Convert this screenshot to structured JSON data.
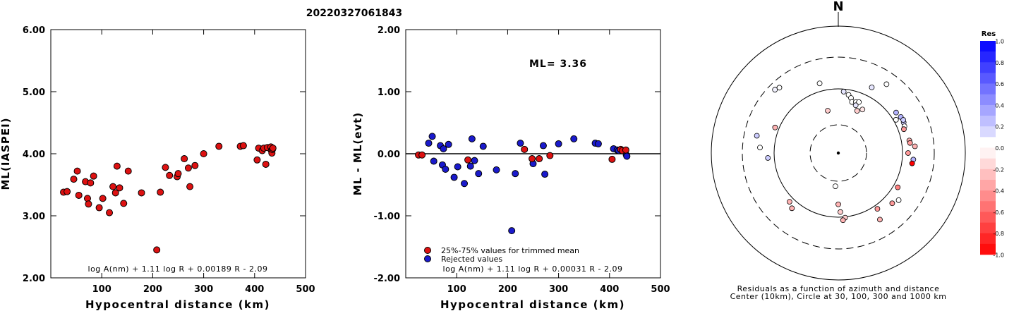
{
  "figure_title": "20220327061843",
  "chart_data": [
    {
      "type": "scatter",
      "id": "ml-vs-distance",
      "title": "",
      "xlabel": "Hypocentral distance (km)",
      "ylabel": "ML(IASPEI)",
      "xlim": [
        0,
        500
      ],
      "ylim": [
        2.0,
        6.0
      ],
      "xticks": [
        "100",
        "200",
        "300",
        "400",
        "500"
      ],
      "xtick_values": [
        100,
        200,
        300,
        400,
        500
      ],
      "yticks": [
        "2.00",
        "3.00",
        "4.00",
        "5.00",
        "6.00"
      ],
      "ytick_values": [
        2,
        3,
        4,
        5,
        6
      ],
      "formula": "log A(nm) + 1.11 log R + 0.00189 R - 2.09",
      "point_color": "#dd1111",
      "points": [
        [
          25,
          3.38
        ],
        [
          32,
          3.39
        ],
        [
          45,
          3.59
        ],
        [
          52,
          3.72
        ],
        [
          55,
          3.33
        ],
        [
          68,
          3.55
        ],
        [
          72,
          3.28
        ],
        [
          74,
          3.19
        ],
        [
          78,
          3.53
        ],
        [
          84,
          3.64
        ],
        [
          95,
          3.13
        ],
        [
          102,
          3.28
        ],
        [
          115,
          3.05
        ],
        [
          122,
          3.47
        ],
        [
          127,
          3.37
        ],
        [
          130,
          3.8
        ],
        [
          135,
          3.45
        ],
        [
          143,
          3.2
        ],
        [
          152,
          3.72
        ],
        [
          178,
          3.37
        ],
        [
          208,
          2.45
        ],
        [
          215,
          3.38
        ],
        [
          225,
          3.78
        ],
        [
          233,
          3.65
        ],
        [
          248,
          3.63
        ],
        [
          250,
          3.68
        ],
        [
          262,
          3.92
        ],
        [
          270,
          3.77
        ],
        [
          273,
          3.47
        ],
        [
          283,
          3.81
        ],
        [
          300,
          4.0
        ],
        [
          330,
          4.12
        ],
        [
          372,
          4.12
        ],
        [
          378,
          4.13
        ],
        [
          405,
          3.9
        ],
        [
          408,
          4.09
        ],
        [
          415,
          4.05
        ],
        [
          418,
          4.09
        ],
        [
          422,
          3.83
        ],
        [
          425,
          4.1
        ],
        [
          432,
          4.11
        ],
        [
          433,
          4.05
        ],
        [
          434,
          4.01
        ],
        [
          435,
          4.07
        ],
        [
          436,
          4.09
        ]
      ]
    },
    {
      "type": "scatter",
      "id": "ml-residual-vs-distance",
      "title": "",
      "xlabel": "Hypocentral distance (km)",
      "ylabel": "ML - ML(evt)",
      "xlim": [
        0,
        500
      ],
      "ylim": [
        -2.0,
        2.0
      ],
      "xticks": [
        "100",
        "200",
        "300",
        "400",
        "500"
      ],
      "xtick_values": [
        100,
        200,
        300,
        400,
        500
      ],
      "yticks": [
        "-2.00",
        "-1.00",
        "0.00",
        "1.00",
        "2.00"
      ],
      "ytick_values": [
        -2,
        -1,
        0,
        1,
        2
      ],
      "ml_text": "ML= 3.36",
      "formula": "log A(nm) + 1.11 log R + 0.00031 R - 2.09",
      "legend": [
        {
          "label": "25%-75% values for trimmed mean",
          "color": "#dd1111"
        },
        {
          "label": "Rejected values",
          "color": "#1a1acc"
        }
      ],
      "series": [
        {
          "name": "25%-75% values for trimmed mean",
          "color": "#dd1111",
          "points": [
            [
              25,
              -0.02
            ],
            [
              32,
              -0.02
            ],
            [
              122,
              -0.1
            ],
            [
              233,
              0.07
            ],
            [
              248,
              -0.08
            ],
            [
              262,
              -0.08
            ],
            [
              283,
              -0.03
            ],
            [
              405,
              -0.09
            ],
            [
              422,
              0.07
            ],
            [
              425,
              0.05
            ],
            [
              432,
              0.06
            ]
          ]
        },
        {
          "name": "Rejected values",
          "color": "#1a1acc",
          "points": [
            [
              45,
              0.17
            ],
            [
              52,
              0.28
            ],
            [
              55,
              -0.12
            ],
            [
              68,
              0.13
            ],
            [
              72,
              -0.18
            ],
            [
              74,
              0.08
            ],
            [
              78,
              -0.25
            ],
            [
              84,
              0.15
            ],
            [
              95,
              -0.38
            ],
            [
              102,
              -0.21
            ],
            [
              115,
              -0.48
            ],
            [
              127,
              -0.2
            ],
            [
              130,
              0.24
            ],
            [
              135,
              -0.11
            ],
            [
              143,
              -0.32
            ],
            [
              152,
              0.12
            ],
            [
              178,
              -0.26
            ],
            [
              208,
              -1.24
            ],
            [
              215,
              -0.32
            ],
            [
              225,
              0.17
            ],
            [
              250,
              -0.16
            ],
            [
              270,
              0.13
            ],
            [
              273,
              -0.33
            ],
            [
              300,
              0.16
            ],
            [
              330,
              0.24
            ],
            [
              372,
              0.17
            ],
            [
              378,
              0.16
            ],
            [
              408,
              0.08
            ],
            [
              415,
              0.06
            ],
            [
              418,
              0.05
            ],
            [
              433,
              -0.02
            ],
            [
              434,
              -0.04
            ]
          ]
        }
      ]
    },
    {
      "type": "scatter",
      "id": "residual-azimuth-plot",
      "title": "N",
      "caption_line1": "Residuals as a function of azimuth and distance",
      "caption_line2": "Center (10km), Circle at 30, 100, 300 and 1000 km",
      "ring_distances_km": [
        30,
        100,
        300,
        1000
      ],
      "center_km": 10,
      "note": "points as [azimuth_deg, distance_km, residual]",
      "points": [
        [
          315,
          260,
          0.05
        ],
        [
          318,
          250,
          0.0
        ],
        [
          35,
          225,
          0.0
        ],
        [
          27,
          160,
          0.1
        ],
        [
          345,
          150,
          0.0
        ],
        [
          5,
          95,
          0.1
        ],
        [
          10,
          90,
          0.0
        ],
        [
          13,
          85,
          0.0
        ],
        [
          15,
          78,
          0.0
        ],
        [
          19,
          80,
          0.0
        ],
        [
          22,
          82,
          0.0
        ],
        [
          20,
          74,
          0.1
        ],
        [
          24,
          65,
          -0.2
        ],
        [
          29,
          72,
          -0.1
        ],
        [
          346,
          60,
          -0.2
        ],
        [
          292,
          125,
          -0.3
        ],
        [
          60,
          115,
          0.0
        ],
        [
          55,
          140,
          0.3
        ],
        [
          60,
          150,
          0.3
        ],
        [
          65,
          150,
          0.2
        ],
        [
          63,
          155,
          0.2
        ],
        [
          68,
          145,
          0.0
        ],
        [
          80,
          150,
          -0.3
        ],
        [
          82,
          152,
          -0.4
        ],
        [
          85,
          180,
          -0.3
        ],
        [
          90,
          135,
          -0.4
        ],
        [
          95,
          170,
          0.3
        ],
        [
          98,
          165,
          -1.0
        ],
        [
          70,
          135,
          -0.4
        ],
        [
          282,
          220,
          0.2
        ],
        [
          274,
          190,
          0.0
        ],
        [
          266,
          140,
          0.2
        ],
        [
          120,
          128,
          -0.5
        ],
        [
          133,
          160,
          -0.4
        ],
        [
          145,
          125,
          -0.4
        ],
        [
          148,
          190,
          -0.3
        ],
        [
          128,
          178,
          0.0
        ],
        [
          185,
          40,
          0.0
        ],
        [
          180,
          75,
          -0.3
        ],
        [
          178,
          90,
          -0.2
        ],
        [
          174,
          105,
          -0.2
        ],
        [
          176,
          120,
          -0.3
        ],
        [
          220,
          150,
          -0.3
        ],
        [
          225,
          130,
          -0.3
        ]
      ]
    }
  ],
  "colorbar": {
    "title": "Res",
    "ticks": [
      "1.0",
      "0.8",
      "0.6",
      "0.4",
      "0.2",
      "0.0",
      "-0.2",
      "-0.4",
      "-0.6",
      "-0.8",
      "-1.0"
    ],
    "tick_values": [
      1.0,
      0.8,
      0.6,
      0.4,
      0.2,
      0.0,
      -0.2,
      -0.4,
      -0.6,
      -0.8,
      -1.0
    ]
  }
}
